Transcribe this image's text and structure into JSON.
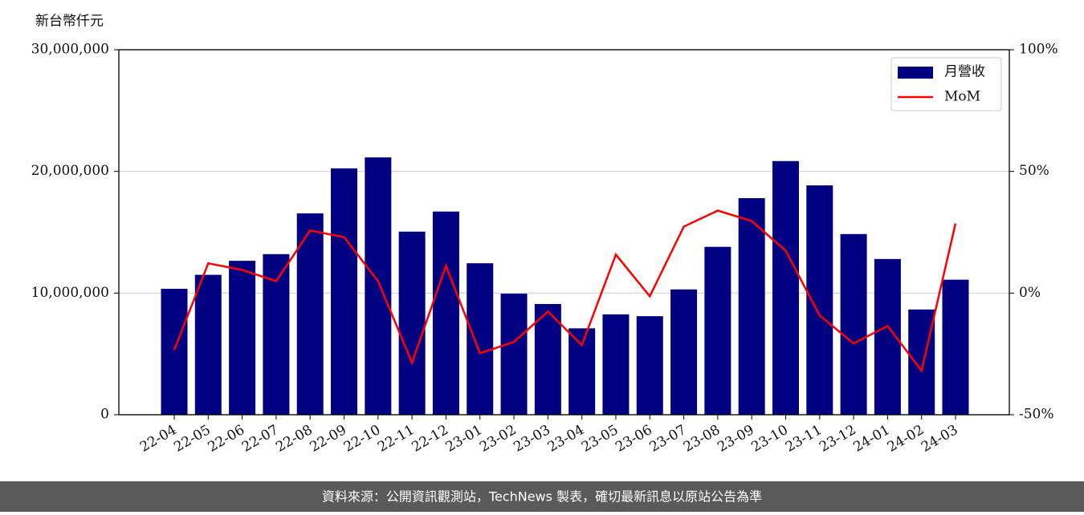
{
  "chart_data": {
    "type": "bar-line",
    "y_label": "新台幣仟元",
    "footer": "資料來源：公開資訊觀測站，TechNews 製表，確切最新訊息以原站公告為準",
    "categories": [
      "22-04",
      "22-05",
      "22-06",
      "22-07",
      "22-08",
      "22-09",
      "22-10",
      "22-11",
      "22-12",
      "23-01",
      "23-02",
      "23-03",
      "23-04",
      "23-05",
      "23-06",
      "23-07",
      "23-08",
      "23-09",
      "23-10",
      "23-11",
      "23-12",
      "24-01",
      "24-02",
      "24-03"
    ],
    "series": [
      {
        "name": "月營收",
        "type": "bar",
        "color": "#000080",
        "values": [
          10350000,
          11500000,
          12650000,
          13200000,
          16550000,
          20250000,
          21150000,
          15050000,
          16700000,
          12450000,
          9950000,
          9100000,
          7100000,
          8250000,
          8100000,
          10300000,
          13800000,
          17800000,
          20850000,
          18850000,
          14850000,
          12800000,
          8650000,
          11100000
        ]
      },
      {
        "name": "MoM",
        "type": "line",
        "axis": "y2",
        "color": "#ff0000",
        "values": [
          -23.4,
          12.2,
          9.5,
          4.9,
          25.7,
          23,
          4.9,
          -28.6,
          11.2,
          -24.7,
          -20.1,
          -7.6,
          -21.4,
          15.8,
          -1.3,
          27.3,
          33.9,
          29.6,
          17.4,
          -9.2,
          -20.7,
          -13.5,
          -31.9,
          28.6
        ]
      }
    ],
    "ylim": [
      0,
      30000000
    ],
    "yticks": [
      0,
      {
        "value": 10000000,
        "label": "10,000,000"
      },
      {
        "value": 20000000,
        "label": "20,000,000"
      },
      {
        "value": 30000000,
        "label": "30,000,000"
      }
    ],
    "y2lim": [
      -50,
      100
    ],
    "y2ticks": [
      {
        "value": -50,
        "label": "-50%"
      },
      {
        "value": 0,
        "label": "0%"
      },
      {
        "value": 50,
        "label": "50%"
      },
      {
        "value": 100,
        "label": "100%"
      }
    ],
    "grid": true,
    "legend": "upper right"
  }
}
